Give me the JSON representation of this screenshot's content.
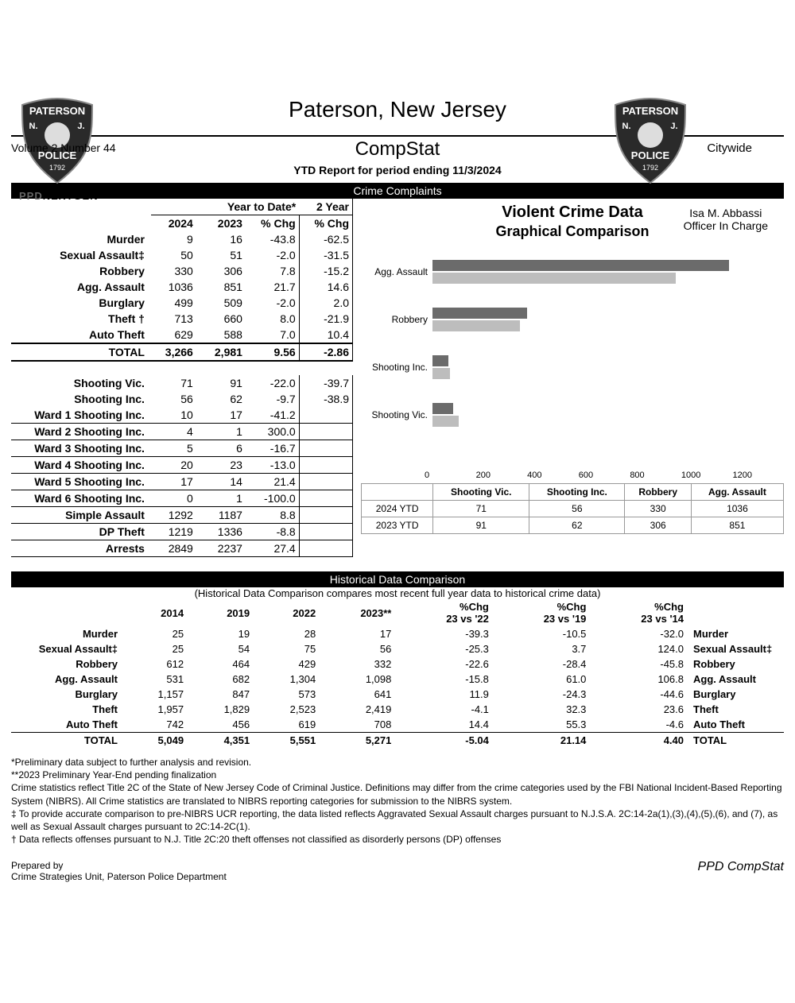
{
  "header": {
    "ppdnextgen_ppd": "PPD",
    "ppdnextgen_rest": "NEXTGEN",
    "city": "Paterson, New Jersey",
    "officer_name": "Isa M. Abbassi",
    "officer_title": "Officer In Charge",
    "volume": "Volume 2  Number  44",
    "compstat": "CompStat",
    "citywide": "Citywide",
    "period": "YTD Report for period ending  11/3/2024"
  },
  "sections": {
    "crime_complaints": "Crime Complaints",
    "historical": "Historical Data Comparison"
  },
  "cc_headers": {
    "ytd": "Year to Date*",
    "two_year": "2 Year",
    "y2024": "2024",
    "y2023": "2023",
    "pct": "% Chg",
    "pct2": "% Chg"
  },
  "cc_rows": [
    {
      "label": "Murder",
      "c1": "9",
      "c2": "16",
      "c3": "-43.8",
      "c4": "-62.5"
    },
    {
      "label": "Sexual Assault‡",
      "c1": "50",
      "c2": "51",
      "c3": "-2.0",
      "c4": "-31.5"
    },
    {
      "label": "Robbery",
      "c1": "330",
      "c2": "306",
      "c3": "7.8",
      "c4": "-15.2"
    },
    {
      "label": "Agg. Assault",
      "c1": "1036",
      "c2": "851",
      "c3": "21.7",
      "c4": "14.6"
    },
    {
      "label": "Burglary",
      "c1": "499",
      "c2": "509",
      "c3": "-2.0",
      "c4": "2.0"
    },
    {
      "label": "Theft †",
      "c1": "713",
      "c2": "660",
      "c3": "8.0",
      "c4": "-21.9"
    },
    {
      "label": "Auto Theft",
      "c1": "629",
      "c2": "588",
      "c3": "7.0",
      "c4": "10.4"
    }
  ],
  "cc_total": {
    "label": "TOTAL",
    "c1": "3,266",
    "c2": "2,981",
    "c3": "9.56",
    "c4": "-2.86"
  },
  "cc_rows2": [
    {
      "label": "Shooting Vic.",
      "c1": "71",
      "c2": "91",
      "c3": "-22.0",
      "c4": "-39.7"
    },
    {
      "label": "Shooting Inc.",
      "c1": "56",
      "c2": "62",
      "c3": "-9.7",
      "c4": "-38.9"
    }
  ],
  "cc_rows3": [
    {
      "label": "Ward 1 Shooting Inc.",
      "c1": "10",
      "c2": "17",
      "c3": "-41.2"
    },
    {
      "label": "Ward 2 Shooting Inc.",
      "c1": "4",
      "c2": "1",
      "c3": "300.0"
    },
    {
      "label": "Ward 3 Shooting Inc.",
      "c1": "5",
      "c2": "6",
      "c3": "-16.7"
    },
    {
      "label": "Ward 4 Shooting Inc.",
      "c1": "20",
      "c2": "23",
      "c3": "-13.0"
    },
    {
      "label": "Ward 5 Shooting Inc.",
      "c1": "17",
      "c2": "14",
      "c3": "21.4"
    },
    {
      "label": "Ward 6 Shooting Inc.",
      "c1": "0",
      "c2": "1",
      "c3": "-100.0"
    },
    {
      "label": "Simple Assault",
      "c1": "1292",
      "c2": "1187",
      "c3": "8.8"
    },
    {
      "label": "DP Theft",
      "c1": "1219",
      "c2": "1336",
      "c3": "-8.8"
    },
    {
      "label": "Arrests",
      "c1": "2849",
      "c2": "2237",
      "c3": "27.4"
    }
  ],
  "chart": {
    "title": "Violent Crime Data",
    "subtitle": "Graphical Comparison",
    "max": 1200,
    "ticks": [
      "0",
      "200",
      "400",
      "600",
      "800",
      "1000",
      "1200"
    ],
    "color_2024": "#6b6b6b",
    "color_2023": "#bdbdbd",
    "categories": [
      "Agg. Assault",
      "Robbery",
      "Shooting Inc.",
      "Shooting Vic."
    ],
    "series": [
      {
        "name": "2024 YTD",
        "vals": {
          "Shooting Vic.": "71",
          "Shooting Inc.": "56",
          "Robbery": "330",
          "Agg. Assault": "1036"
        }
      },
      {
        "name": "2023 YTD",
        "vals": {
          "Shooting Vic.": "91",
          "Shooting Inc.": "62",
          "Robbery": "306",
          "Agg. Assault": "851"
        }
      }
    ],
    "legend_headers": [
      "",
      "Shooting Vic.",
      "Shooting Inc.",
      "Robbery",
      "Agg. Assault"
    ]
  },
  "hist_note": "(Historical Data Comparison compares most recent full year data to historical crime data)",
  "hist_headers": {
    "y2014": "2014",
    "y2019": "2019",
    "y2022": "2022",
    "y2023": "2023**",
    "p1": "%Chg",
    "p1b": "23 vs '22",
    "p2": "%Chg",
    "p2b": "23 vs '19",
    "p3": "%Chg",
    "p3b": "23 vs '14"
  },
  "hist_rows": [
    {
      "l": "Murder",
      "a": "25",
      "b": "19",
      "c": "28",
      "d": "17",
      "e": "-39.3",
      "f": "-10.5",
      "g": "-32.0",
      "r": "Murder"
    },
    {
      "l": "Sexual Assault‡",
      "a": "25",
      "b": "54",
      "c": "75",
      "d": "56",
      "e": "-25.3",
      "f": "3.7",
      "g": "124.0",
      "r": "Sexual Assault‡"
    },
    {
      "l": "Robbery",
      "a": "612",
      "b": "464",
      "c": "429",
      "d": "332",
      "e": "-22.6",
      "f": "-28.4",
      "g": "-45.8",
      "r": "Robbery"
    },
    {
      "l": "Agg. Assault",
      "a": "531",
      "b": "682",
      "c": "1,304",
      "d": "1,098",
      "e": "-15.8",
      "f": "61.0",
      "g": "106.8",
      "r": "Agg. Assault"
    },
    {
      "l": "Burglary",
      "a": "1,157",
      "b": "847",
      "c": "573",
      "d": "641",
      "e": "11.9",
      "f": "-24.3",
      "g": "-44.6",
      "r": "Burglary"
    },
    {
      "l": "Theft",
      "a": "1,957",
      "b": "1,829",
      "c": "2,523",
      "d": "2,419",
      "e": "-4.1",
      "f": "32.3",
      "g": "23.6",
      "r": "Theft"
    },
    {
      "l": "Auto Theft",
      "a": "742",
      "b": "456",
      "c": "619",
      "d": "708",
      "e": "14.4",
      "f": "55.3",
      "g": "-4.6",
      "r": "Auto Theft"
    }
  ],
  "hist_total": {
    "l": "TOTAL",
    "a": "5,049",
    "b": "4,351",
    "c": "5,551",
    "d": "5,271",
    "e": "-5.04",
    "f": "21.14",
    "g": "4.40",
    "r": "TOTAL"
  },
  "footnotes": [
    "*Preliminary data subject to further analysis and revision.",
    "**2023 Preliminary Year-End pending finalization",
    "Crime statistics reflect Title 2C of the State of New Jersey Code of Criminal Justice.  Definitions may differ from the crime categories used by the FBI National Incident-Based Reporting System (NIBRS). All Crime statistics are translated to NIBRS reporting categories for submission to the NIBRS system.",
    "‡ To provide accurate comparison to pre-NIBRS UCR reporting, the data listed reflects Aggravated Sexual Assault charges pursuant to N.J.S.A. 2C:14-2a(1),(3),(4),(5),(6), and (7), as well as Sexual Assault charges pursuant to 2C:14-2C(1).",
    "† Data reflects offenses pursuant to N.J. Title 2C:20 theft offenses not classified as disorderly persons (DP) offenses"
  ],
  "footer": {
    "prepared": "Prepared by",
    "unit": "Crime Strategies Unit, Paterson Police Department",
    "brand": "PPD CompStat"
  },
  "badge": {
    "top": "PATERSON",
    "left": "N.",
    "right": "J.",
    "mid": "POLICE",
    "year": "1792"
  }
}
